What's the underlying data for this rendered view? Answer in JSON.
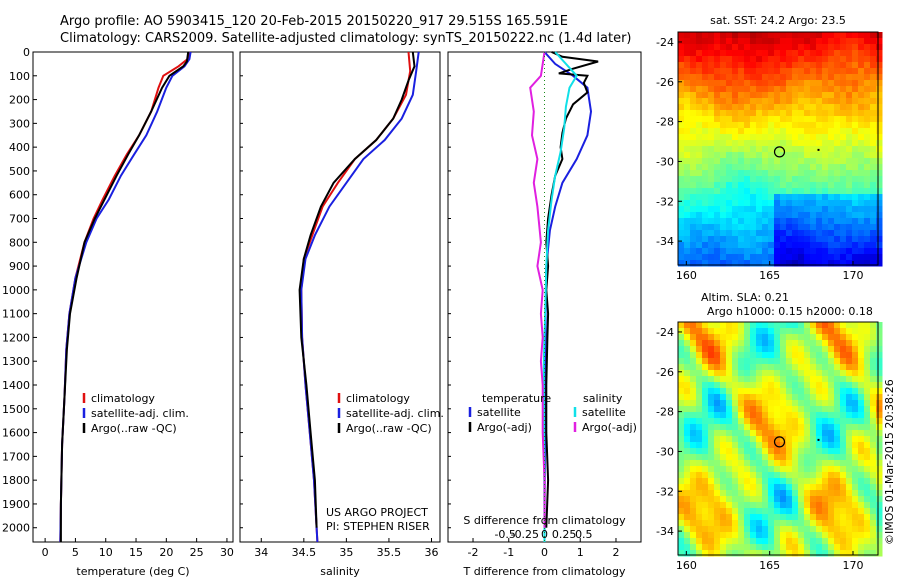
{
  "header": {
    "line1": "Argo profile: AO 5903415_120 20-Feb-2015 20150220_917 29.515S 165.591E",
    "line2": "Climatology: CARS2009. Satellite-adjusted climatology: synTS_20150222.nc (1.4d later)"
  },
  "colors": {
    "red": "#e01010",
    "blue": "#1a20e0",
    "black": "#000000",
    "cyan": "#10e0e8",
    "magenta": "#e020e0"
  },
  "chart_data": [
    {
      "type": "line",
      "id": "temperature",
      "xlabel": "temperature (deg C)",
      "ylabel": "",
      "xlim": [
        -2,
        31
      ],
      "ylim": [
        2060,
        0
      ],
      "xticks": [
        0,
        5,
        10,
        15,
        20,
        25,
        30
      ],
      "yticks": [
        0,
        100,
        200,
        300,
        400,
        500,
        600,
        700,
        800,
        900,
        1000,
        1100,
        1200,
        1300,
        1400,
        1500,
        1600,
        1700,
        1800,
        1900,
        2000
      ],
      "legend": [
        "climatology",
        "satellite-adj. clim.",
        "Argo(..raw -QC)"
      ],
      "series": [
        {
          "name": "climatology",
          "color": "red",
          "points": [
            [
              24,
              0
            ],
            [
              23.5,
              30
            ],
            [
              22,
              60
            ],
            [
              19.5,
              100
            ],
            [
              18.7,
              150
            ],
            [
              17.5,
              250
            ],
            [
              15.5,
              350
            ],
            [
              13.5,
              430
            ],
            [
              11.5,
              520
            ],
            [
              9.5,
              620
            ],
            [
              8,
              700
            ],
            [
              6.5,
              800
            ],
            [
              5,
              950
            ],
            [
              4,
              1100
            ],
            [
              3.5,
              1250
            ],
            [
              3.2,
              1450
            ],
            [
              2.8,
              1650
            ],
            [
              2.6,
              1900
            ],
            [
              2.5,
              2060
            ]
          ]
        },
        {
          "name": "satellite-adj. clim.",
          "color": "blue",
          "points": [
            [
              24,
              0
            ],
            [
              23.8,
              30
            ],
            [
              23,
              60
            ],
            [
              21,
              100
            ],
            [
              20,
              150
            ],
            [
              18.5,
              250
            ],
            [
              16.7,
              350
            ],
            [
              14.7,
              430
            ],
            [
              12.5,
              520
            ],
            [
              10.5,
              620
            ],
            [
              8.5,
              700
            ],
            [
              6.8,
              800
            ],
            [
              5,
              950
            ],
            [
              4,
              1100
            ],
            [
              3.5,
              1250
            ],
            [
              3.2,
              1450
            ],
            [
              2.8,
              1650
            ],
            [
              2.6,
              1900
            ],
            [
              2.5,
              2060
            ]
          ]
        },
        {
          "name": "Argo(..raw -QC)",
          "color": "black",
          "points": [
            [
              23.6,
              0
            ],
            [
              23.4,
              40
            ],
            [
              22.8,
              60
            ],
            [
              20.5,
              100
            ],
            [
              19.3,
              150
            ],
            [
              17.5,
              250
            ],
            [
              15.5,
              350
            ],
            [
              13.7,
              430
            ],
            [
              11.8,
              520
            ],
            [
              9.8,
              620
            ],
            [
              8.2,
              700
            ],
            [
              6.5,
              800
            ],
            [
              5.2,
              950
            ],
            [
              4.1,
              1100
            ],
            [
              3.6,
              1250
            ],
            [
              3.2,
              1450
            ],
            [
              2.8,
              1650
            ],
            [
              2.6,
              1900
            ],
            [
              2.6,
              2060
            ]
          ]
        }
      ]
    },
    {
      "type": "line",
      "id": "salinity",
      "xlabel": "salinity",
      "ylabel": "",
      "xlim": [
        33.75,
        36.1
      ],
      "ylim": [
        2060,
        0
      ],
      "xticks": [
        34,
        34.5,
        35,
        35.5,
        36
      ],
      "legend": [
        "climatology",
        "satellite-adj. clim.",
        "Argo(..raw -QC)"
      ],
      "series": [
        {
          "name": "climatology",
          "color": "red",
          "points": [
            [
              35.73,
              0
            ],
            [
              35.75,
              80
            ],
            [
              35.7,
              180
            ],
            [
              35.55,
              280
            ],
            [
              35.35,
              370
            ],
            [
              35.1,
              450
            ],
            [
              34.9,
              550
            ],
            [
              34.72,
              650
            ],
            [
              34.6,
              770
            ],
            [
              34.5,
              870
            ],
            [
              34.47,
              1000
            ],
            [
              34.48,
              1200
            ],
            [
              34.52,
              1400
            ],
            [
              34.57,
              1600
            ],
            [
              34.62,
              1800
            ],
            [
              34.65,
              2000
            ],
            [
              34.66,
              2060
            ]
          ]
        },
        {
          "name": "satellite-adj. clim.",
          "color": "blue",
          "points": [
            [
              35.85,
              0
            ],
            [
              35.82,
              80
            ],
            [
              35.78,
              180
            ],
            [
              35.65,
              280
            ],
            [
              35.45,
              370
            ],
            [
              35.2,
              450
            ],
            [
              35,
              550
            ],
            [
              34.8,
              650
            ],
            [
              34.63,
              770
            ],
            [
              34.52,
              870
            ],
            [
              34.47,
              1000
            ],
            [
              34.48,
              1200
            ],
            [
              34.52,
              1400
            ],
            [
              34.57,
              1600
            ],
            [
              34.62,
              1800
            ],
            [
              34.65,
              2000
            ],
            [
              34.66,
              2060
            ]
          ]
        },
        {
          "name": "Argo(..raw -QC)",
          "color": "black",
          "points": [
            [
              35.78,
              0
            ],
            [
              35.8,
              60
            ],
            [
              35.73,
              120
            ],
            [
              35.65,
              200
            ],
            [
              35.55,
              280
            ],
            [
              35.35,
              370
            ],
            [
              35.1,
              450
            ],
            [
              34.85,
              550
            ],
            [
              34.7,
              650
            ],
            [
              34.58,
              770
            ],
            [
              34.5,
              870
            ],
            [
              34.45,
              1000
            ],
            [
              34.47,
              1200
            ],
            [
              34.53,
              1400
            ],
            [
              34.58,
              1600
            ],
            [
              34.63,
              1800
            ],
            [
              34.65,
              2000
            ]
          ]
        }
      ]
    },
    {
      "type": "line",
      "id": "difference",
      "xlabel": "T difference from climatology",
      "xlabel_top": "S difference from climatology",
      "xlim": [
        -2.7,
        2.7
      ],
      "ylim": [
        2060,
        0
      ],
      "xticks": [
        -2,
        -1,
        0,
        1,
        2
      ],
      "xticklabels": [
        "-2",
        "-1",
        "0",
        "1",
        "2"
      ],
      "sxticks": [
        -1.1,
        -0.55,
        0,
        0.55,
        1.1
      ],
      "sxticklabels": [
        "-0.5",
        "-0.25",
        "0",
        "0.25",
        "0.5"
      ],
      "legend_left_title": "temperature",
      "legend_right_title": "salinity",
      "legend": [
        "satellite",
        "Argo(-adj)",
        "satellite",
        "Argo(-adj)"
      ],
      "series": [
        {
          "name": "satellite",
          "group": "temperature",
          "color": "blue",
          "points": [
            [
              0,
              0
            ],
            [
              0.3,
              50
            ],
            [
              0.8,
              100
            ],
            [
              1.2,
              150
            ],
            [
              1.3,
              250
            ],
            [
              1.2,
              350
            ],
            [
              0.9,
              450
            ],
            [
              0.5,
              550
            ],
            [
              0.3,
              650
            ],
            [
              0.15,
              750
            ],
            [
              0.05,
              900
            ],
            [
              0.03,
              1100
            ],
            [
              0.02,
              1400
            ],
            [
              0,
              2060
            ]
          ]
        },
        {
          "name": "Argo(-adj)",
          "group": "temperature",
          "color": "black",
          "points": [
            [
              0.2,
              0
            ],
            [
              0.5,
              20
            ],
            [
              1.5,
              40
            ],
            [
              0.8,
              70
            ],
            [
              0.4,
              90
            ],
            [
              1.2,
              100
            ],
            [
              1.1,
              130
            ],
            [
              1.2,
              170
            ],
            [
              0.8,
              220
            ],
            [
              0.6,
              280
            ],
            [
              0.5,
              340
            ],
            [
              0.45,
              400
            ],
            [
              0.5,
              450
            ],
            [
              0.3,
              520
            ],
            [
              0.2,
              600
            ],
            [
              0.1,
              700
            ],
            [
              0.05,
              800
            ],
            [
              0.1,
              900
            ],
            [
              0.05,
              1000
            ],
            [
              0.1,
              1100
            ],
            [
              0.08,
              1200
            ],
            [
              0.05,
              1400
            ],
            [
              0.05,
              1600
            ],
            [
              0.1,
              1800
            ],
            [
              0.05,
              2000
            ]
          ]
        },
        {
          "name": "satellite",
          "group": "salinity",
          "color": "cyan",
          "points": [
            [
              0.3,
              0
            ],
            [
              0.9,
              100
            ],
            [
              0.7,
              150
            ],
            [
              0.6,
              230
            ],
            [
              0.55,
              320
            ],
            [
              0.45,
              420
            ],
            [
              0.3,
              520
            ],
            [
              0.2,
              620
            ],
            [
              0.1,
              750
            ],
            [
              0.05,
              900
            ],
            [
              0.02,
              1100
            ],
            [
              -0.02,
              1300
            ],
            [
              0,
              2060
            ]
          ]
        },
        {
          "name": "Argo(-adj)",
          "group": "salinity",
          "color": "magenta",
          "points": [
            [
              0,
              0
            ],
            [
              -0.1,
              100
            ],
            [
              -0.4,
              150
            ],
            [
              -0.3,
              250
            ],
            [
              -0.35,
              350
            ],
            [
              -0.2,
              450
            ],
            [
              -0.3,
              550
            ],
            [
              -0.2,
              650
            ],
            [
              -0.1,
              800
            ],
            [
              -0.2,
              900
            ],
            [
              -0.05,
              1000
            ],
            [
              -0.1,
              1100
            ],
            [
              -0.05,
              1200
            ],
            [
              -0.1,
              1300
            ],
            [
              -0.05,
              1400
            ],
            [
              -0.05,
              1600
            ],
            [
              0,
              1800
            ],
            [
              0,
              2000
            ]
          ]
        }
      ]
    },
    {
      "type": "heatmap",
      "id": "sst_map",
      "title": "sat. SST: 24.2 Argo: 23.5",
      "xticks": [
        160,
        165,
        170
      ],
      "yticks": [
        -24,
        -26,
        -28,
        -30,
        -32,
        -34
      ],
      "xlim": [
        159.5,
        171.5
      ],
      "ylim": [
        -35.2,
        -23.5
      ],
      "argo_position": [
        165.59,
        -29.52
      ]
    },
    {
      "type": "heatmap",
      "id": "sla_map",
      "title": "Altim. SLA: 0.21",
      "subtitle": "Argo h1000: 0.15 h2000: 0.18",
      "xticks": [
        160,
        165,
        170
      ],
      "yticks": [
        -24,
        -26,
        -28,
        -30,
        -32,
        -34
      ],
      "xlim": [
        159.5,
        171.5
      ],
      "ylim": [
        -35.2,
        -23.5
      ],
      "argo_position": [
        165.59,
        -29.52
      ]
    }
  ],
  "annotations": {
    "project_line1": "US ARGO PROJECT",
    "project_line2": "PI: STEPHEN RISER",
    "footer_vertical": "©IMOS 01-Mar-2015 20:38:26"
  }
}
